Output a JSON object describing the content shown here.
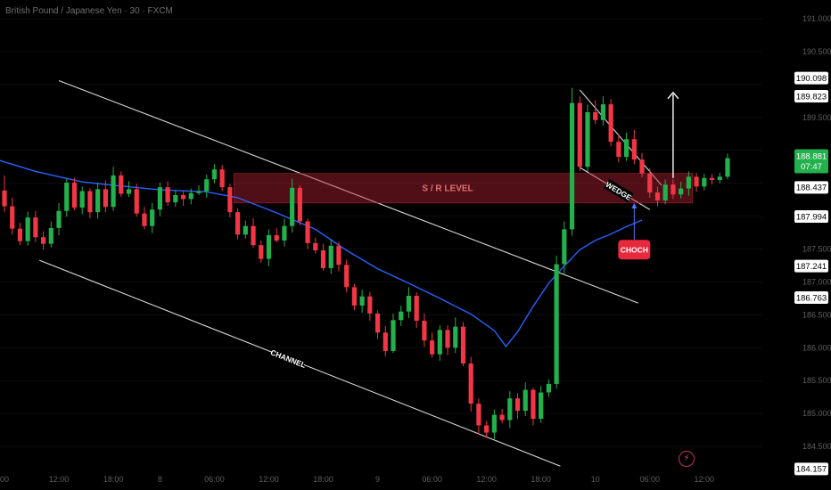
{
  "header": {
    "symbol": "British Pound / Japanese Yen · 30 · FXCM"
  },
  "icons": {
    "alert": "lightning-bolt-icon"
  },
  "colors": {
    "background": "#000000",
    "bull": "#22b14c",
    "bear": "#f23645",
    "ma": "#2962ff",
    "line": "#d9d9d9",
    "sr_zone": "rgba(178,34,52,0.45)",
    "choch": "#e8283c",
    "price_box": "#22b14c",
    "axis_box_bg": "#ffffff",
    "axis_text": "#5f5f5f"
  },
  "chart_data": {
    "type": "candlestick",
    "title": "British Pound / Japanese Yen · 30 · FXCM",
    "ylim": [
      184.0,
      191.15
    ],
    "price_scale_ticks": [
      "191.000",
      "190.500",
      "190.000",
      "189.500",
      "189.000",
      "188.500",
      "188.000",
      "187.500",
      "187.000",
      "186.500",
      "186.000",
      "185.500",
      "185.000",
      "184.500"
    ],
    "time_labels": [
      {
        "label": "00",
        "t": 0
      },
      {
        "label": "12:00",
        "t": 7
      },
      {
        "label": "18:00",
        "t": 14
      },
      {
        "label": "8",
        "t": 20
      },
      {
        "label": "06:00",
        "t": 27
      },
      {
        "label": "12:00",
        "t": 34
      },
      {
        "label": "18:00",
        "t": 41
      },
      {
        "label": "9",
        "t": 48
      },
      {
        "label": "06:00",
        "t": 55
      },
      {
        "label": "12:00",
        "t": 62
      },
      {
        "label": "18:00",
        "t": 69
      },
      {
        "label": "10",
        "t": 76
      },
      {
        "label": "06:00",
        "t": 83
      },
      {
        "label": "12:00",
        "t": 90
      }
    ],
    "price_labels": [
      {
        "value": 190.098,
        "text": "190.098"
      },
      {
        "value": 189.823,
        "text": "189.823"
      },
      {
        "value": 188.437,
        "text": "188.437"
      },
      {
        "value": 187.994,
        "text": "187.994"
      },
      {
        "value": 187.241,
        "text": "187.241"
      },
      {
        "value": 186.763,
        "text": "186.763"
      },
      {
        "value": 184.157,
        "text": "184.157"
      }
    ],
    "current_price": {
      "value": 188.881,
      "text": "188.881",
      "countdown": "07:47"
    },
    "sr_zone": {
      "label": "S / R LEVEL",
      "from": 188.2,
      "to": 188.65
    },
    "annotations": {
      "channel": "CHANNEL",
      "wedge": "WEDGE",
      "choch": "CHOCH"
    },
    "candles": [
      [
        188.39,
        188.15,
        188.62,
        188.06
      ],
      [
        188.15,
        187.81,
        188.28,
        187.72
      ],
      [
        187.81,
        187.62,
        187.9,
        187.56
      ],
      [
        187.62,
        187.98,
        188.07,
        187.55
      ],
      [
        187.98,
        187.68,
        188.08,
        187.61
      ],
      [
        187.68,
        187.58,
        187.77,
        187.49
      ],
      [
        187.58,
        187.82,
        187.92,
        187.52
      ],
      [
        187.82,
        188.08,
        188.2,
        187.71
      ],
      [
        188.08,
        188.51,
        188.57,
        187.99
      ],
      [
        188.51,
        188.13,
        188.58,
        188.09
      ],
      [
        188.13,
        188.38,
        188.45,
        188.03
      ],
      [
        188.38,
        188.06,
        188.42,
        187.97
      ],
      [
        188.06,
        188.41,
        188.51,
        187.96
      ],
      [
        188.41,
        188.14,
        188.54,
        188.06
      ],
      [
        188.14,
        188.62,
        188.75,
        188.08
      ],
      [
        188.62,
        188.34,
        188.68,
        188.29
      ],
      [
        188.34,
        188.41,
        188.53,
        188.29
      ],
      [
        188.41,
        188.04,
        188.49,
        187.99
      ],
      [
        188.04,
        187.85,
        188.14,
        187.8
      ],
      [
        187.85,
        188.1,
        188.2,
        187.74
      ],
      [
        188.1,
        188.44,
        188.51,
        188.0
      ],
      [
        188.44,
        188.21,
        188.53,
        188.16
      ],
      [
        188.21,
        188.32,
        188.4,
        188.14
      ],
      [
        188.32,
        188.26,
        188.38,
        188.16
      ],
      [
        188.26,
        188.35,
        188.42,
        188.18
      ],
      [
        188.35,
        188.38,
        188.47,
        188.32
      ],
      [
        188.38,
        188.56,
        188.63,
        188.28
      ],
      [
        188.56,
        188.71,
        188.79,
        188.5
      ],
      [
        188.71,
        188.44,
        188.78,
        188.38
      ],
      [
        188.44,
        188.06,
        188.49,
        187.98
      ],
      [
        188.06,
        187.72,
        188.12,
        187.65
      ],
      [
        187.72,
        187.85,
        187.93,
        187.66
      ],
      [
        187.85,
        187.56,
        187.97,
        187.52
      ],
      [
        187.56,
        187.35,
        187.63,
        187.29
      ],
      [
        187.35,
        187.71,
        187.8,
        187.24
      ],
      [
        187.71,
        187.63,
        187.82,
        187.6
      ],
      [
        187.63,
        187.85,
        187.96,
        187.54
      ],
      [
        187.85,
        188.43,
        188.57,
        187.75
      ],
      [
        188.43,
        187.92,
        188.47,
        187.86
      ],
      [
        187.92,
        187.59,
        187.96,
        187.5
      ],
      [
        187.59,
        187.48,
        187.67,
        187.43
      ],
      [
        187.48,
        187.21,
        187.58,
        187.17
      ],
      [
        187.21,
        187.55,
        187.65,
        187.12
      ],
      [
        187.55,
        187.26,
        187.61,
        187.16
      ],
      [
        187.26,
        186.92,
        187.34,
        186.84
      ],
      [
        186.92,
        186.64,
        186.97,
        186.57
      ],
      [
        186.64,
        186.78,
        186.88,
        186.53
      ],
      [
        186.78,
        186.52,
        186.85,
        186.41
      ],
      [
        186.52,
        186.23,
        186.57,
        186.13
      ],
      [
        186.23,
        185.95,
        186.33,
        185.87
      ],
      [
        185.95,
        186.42,
        186.52,
        185.92
      ],
      [
        186.42,
        186.55,
        186.64,
        186.33
      ],
      [
        186.55,
        186.79,
        186.92,
        186.45
      ],
      [
        186.79,
        186.41,
        186.84,
        186.3
      ],
      [
        186.41,
        186.11,
        186.52,
        186.01
      ],
      [
        186.11,
        185.9,
        186.23,
        185.85
      ],
      [
        185.9,
        186.27,
        186.34,
        185.8
      ],
      [
        186.27,
        186.0,
        186.34,
        185.89
      ],
      [
        186.0,
        186.32,
        186.46,
        185.92
      ],
      [
        186.32,
        185.76,
        186.39,
        185.72
      ],
      [
        185.76,
        185.15,
        185.86,
        185.03
      ],
      [
        185.15,
        184.82,
        185.23,
        184.68
      ],
      [
        184.82,
        184.71,
        184.89,
        184.63
      ],
      [
        184.71,
        184.98,
        185.06,
        184.61
      ],
      [
        184.98,
        184.9,
        185.07,
        184.85
      ],
      [
        184.9,
        185.23,
        185.34,
        184.78
      ],
      [
        185.23,
        185.04,
        185.31,
        184.92
      ],
      [
        185.04,
        185.36,
        185.47,
        184.96
      ],
      [
        185.36,
        184.92,
        185.39,
        184.82
      ],
      [
        184.92,
        185.32,
        185.42,
        184.86
      ],
      [
        185.32,
        185.45,
        185.52,
        185.25
      ],
      [
        185.45,
        187.27,
        187.4,
        185.38
      ],
      [
        187.27,
        187.8,
        187.92,
        187.1
      ],
      [
        187.8,
        189.72,
        189.95,
        187.7
      ],
      [
        189.72,
        188.75,
        189.82,
        188.69
      ],
      [
        188.75,
        189.58,
        189.7,
        188.68
      ],
      [
        189.58,
        189.46,
        189.76,
        189.4
      ],
      [
        189.46,
        189.7,
        189.82,
        189.38
      ],
      [
        189.7,
        189.13,
        189.78,
        189.06
      ],
      [
        189.13,
        188.9,
        189.24,
        188.82
      ],
      [
        188.9,
        189.17,
        189.27,
        188.84
      ],
      [
        189.17,
        188.86,
        189.31,
        188.79
      ],
      [
        188.86,
        188.65,
        188.96,
        188.59
      ],
      [
        188.65,
        188.36,
        188.73,
        188.28
      ],
      [
        188.36,
        188.24,
        188.45,
        188.15
      ],
      [
        188.24,
        188.48,
        188.56,
        188.18
      ],
      [
        188.48,
        188.33,
        188.56,
        188.26
      ],
      [
        188.33,
        188.42,
        188.52,
        188.27
      ],
      [
        188.42,
        188.6,
        188.68,
        188.31
      ],
      [
        188.6,
        188.45,
        188.66,
        188.37
      ],
      [
        188.45,
        188.58,
        188.64,
        188.39
      ],
      [
        188.58,
        188.55,
        188.64,
        188.48
      ],
      [
        188.55,
        188.6,
        188.66,
        188.5
      ],
      [
        188.6,
        188.881,
        188.95,
        188.56
      ]
    ],
    "moving_average": {
      "name": "",
      "points": [
        [
          -1,
          188.86
        ],
        [
          4,
          188.68
        ],
        [
          10,
          188.52
        ],
        [
          14,
          188.47
        ],
        [
          20,
          188.4
        ],
        [
          26,
          188.37
        ],
        [
          30,
          188.28
        ],
        [
          35,
          188.05
        ],
        [
          40,
          187.8
        ],
        [
          44,
          187.48
        ],
        [
          48,
          187.2
        ],
        [
          52,
          186.98
        ],
        [
          56,
          186.75
        ],
        [
          60,
          186.51
        ],
        [
          63,
          186.26
        ],
        [
          64.5,
          186.02
        ],
        [
          66,
          186.24
        ],
        [
          68,
          186.63
        ],
        [
          70,
          186.98
        ],
        [
          72,
          187.24
        ],
        [
          74,
          187.49
        ],
        [
          76,
          187.63
        ],
        [
          78,
          187.73
        ],
        [
          80,
          187.84
        ],
        [
          82,
          187.94
        ]
      ]
    },
    "trendlines": [
      {
        "name": "channel-upper",
        "from": [
          7,
          190.06
        ],
        "to": [
          81.5,
          186.68
        ]
      },
      {
        "name": "channel-lower",
        "from": [
          4.5,
          187.33
        ],
        "to": [
          71.5,
          184.2
        ]
      },
      {
        "name": "wedge-upper",
        "from": [
          74,
          189.92
        ],
        "to": [
          84.5,
          188.47
        ]
      },
      {
        "name": "wedge-lower",
        "from": [
          74,
          188.74
        ],
        "to": [
          83,
          188.1
        ]
      }
    ],
    "breakout_arrow": {
      "t": 86,
      "from": 188.58,
      "to": 189.88
    },
    "choch_pointer": {
      "t": 81,
      "from": 187.64,
      "to": 188.2
    }
  }
}
